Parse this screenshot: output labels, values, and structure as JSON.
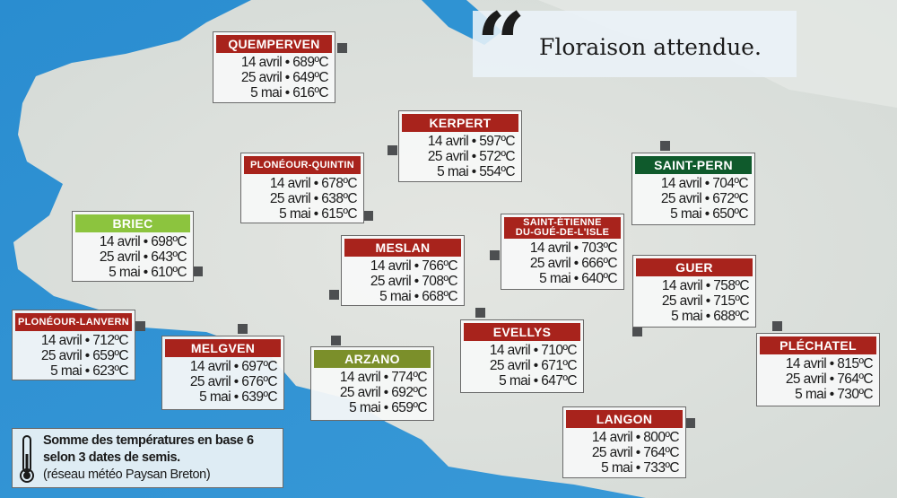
{
  "quote": {
    "icon": "quotation-marks-icon",
    "text": "Floraison attendue."
  },
  "legend": {
    "icon": "thermometer-icon",
    "line1": "Somme des températures en base 6",
    "line2": "selon 3 dates de semis.",
    "line3": "(réseau météo Paysan Breton)"
  },
  "colors": {
    "red": "#a8231c",
    "light_green": "#8cc43e",
    "dark_green": "#0f5a2c",
    "olive": "#7b8f2a",
    "sea": "#2f93d3",
    "land": "#dfe3e0"
  },
  "stations": [
    {
      "name": "QUEMPERVEN",
      "color": "#a8231c",
      "rows": [
        "14 avril • 689ºC",
        "25 avril • 649ºC",
        "5 mai • 616ºC"
      ]
    },
    {
      "name": "PLONÉOUR-QUINTIN",
      "color": "#a8231c",
      "rows": [
        "14 avril • 678ºC",
        "25 avril • 638ºC",
        "5 mai • 615ºC"
      ]
    },
    {
      "name": "KERPERT",
      "color": "#a8231c",
      "rows": [
        "14 avril • 597ºC",
        "25 avril • 572ºC",
        "5 mai • 554ºC"
      ]
    },
    {
      "name": "BRIEC",
      "color": "#8cc43e",
      "rows": [
        "14 avril • 698ºC",
        "25 avril • 643ºC",
        "5 mai • 610ºC"
      ]
    },
    {
      "name": "MESLAN",
      "color": "#a8231c",
      "rows": [
        "14 avril • 766ºC",
        "25 avril • 708ºC",
        "5 mai • 668ºC"
      ]
    },
    {
      "name": "SAINT-ÉTIENNE DU-GUÉ-DE-L'ISLE",
      "color": "#a8231c",
      "rows": [
        "14 avril • 703ºC",
        "25 avril • 666ºC",
        "5 mai • 640ºC"
      ]
    },
    {
      "name": "SAINT-PERN",
      "color": "#0f5a2c",
      "rows": [
        "14 avril • 704ºC",
        "25 avril • 672ºC",
        "5 mai • 650ºC"
      ]
    },
    {
      "name": "GUER",
      "color": "#a8231c",
      "rows": [
        "14 avril • 758ºC",
        "25 avril • 715ºC",
        "5 mai • 688ºC"
      ]
    },
    {
      "name": "PLONÉOUR-LANVERN",
      "color": "#a8231c",
      "rows": [
        "14 avril • 712ºC",
        "25 avril • 659ºC",
        "5 mai • 623ºC"
      ]
    },
    {
      "name": "MELGVEN",
      "color": "#a8231c",
      "rows": [
        "14 avril • 697ºC",
        "25 avril • 676ºC",
        "5 mai • 639ºC"
      ]
    },
    {
      "name": "ARZANO",
      "color": "#7b8f2a",
      "rows": [
        "14 avril • 774ºC",
        "25 avril • 692ºC",
        "5 mai • 659ºC"
      ]
    },
    {
      "name": "EVELLYS",
      "color": "#a8231c",
      "rows": [
        "14 avril • 710ºC",
        "25 avril • 671ºC",
        "5 mai • 647ºC"
      ]
    },
    {
      "name": "PLÉCHATEL",
      "color": "#a8231c",
      "rows": [
        "14 avril • 815ºC",
        "25 avril • 764ºC",
        "5 mai • 730ºC"
      ]
    },
    {
      "name": "LANGON",
      "color": "#a8231c",
      "rows": [
        "14 avril • 800ºC",
        "25 avril • 764ºC",
        "5 mai • 733ºC"
      ]
    }
  ]
}
